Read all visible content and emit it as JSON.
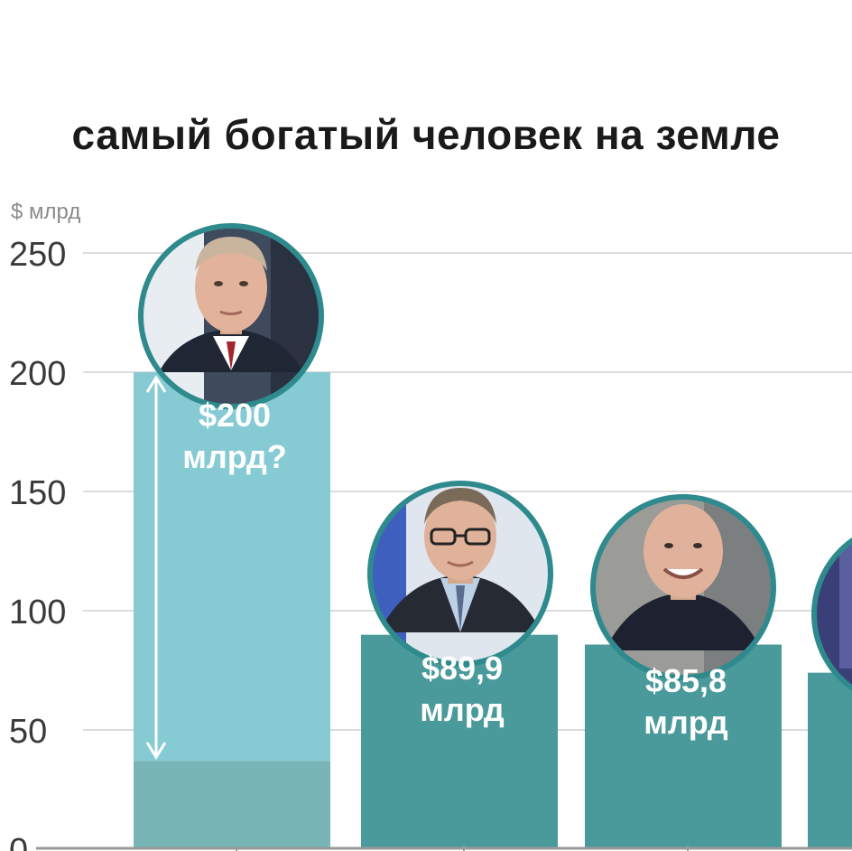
{
  "chart_data": {
    "type": "bar",
    "title": "самый богатый человек на земле",
    "ylabel": "$ млрд",
    "ylim": [
      0,
      250
    ],
    "yticks": [
      0,
      50,
      100,
      150,
      200,
      250
    ],
    "grid": true,
    "categories": [
      "",
      "",
      "",
      ""
    ],
    "values": [
      200,
      89.9,
      85.8,
      74
    ],
    "value_labels": [
      [
        "$200",
        "млрд?"
      ],
      [
        "$89,9",
        "млрд"
      ],
      [
        "$85,8",
        "млрд"
      ],
      [
        "",
        ""
      ]
    ],
    "confirmed_portion_first_bar": 37,
    "colors": {
      "estimated": "#86cbd3",
      "confirmed": "#78b5b6",
      "bar": "#4a9a9c",
      "ring": "#2e8a8c",
      "grid": "#dcdcdc",
      "axis": "#999999"
    }
  }
}
